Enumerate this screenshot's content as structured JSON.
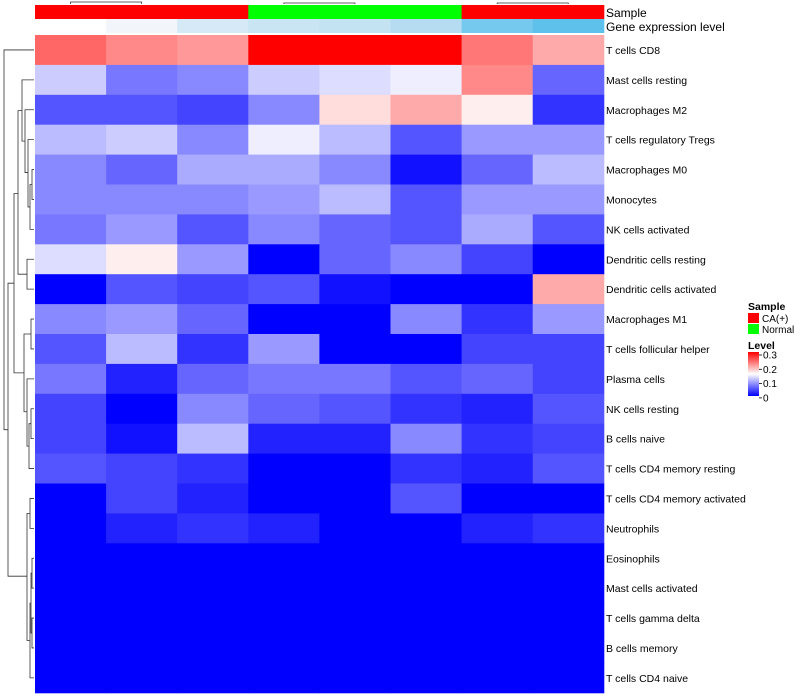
{
  "chart_data": {
    "type": "heatmap",
    "annotation_labels": {
      "sample": "Sample",
      "gene": "Gene expression level"
    },
    "columns": [
      {
        "sample": "CA(+)",
        "gene_color": "#ffffff"
      },
      {
        "sample": "CA(+)",
        "gene_color": "#f2f6fb"
      },
      {
        "sample": "CA(+)",
        "gene_color": "#d5eaf6"
      },
      {
        "sample": "Normal",
        "gene_color": "#c9e4f3"
      },
      {
        "sample": "Normal",
        "gene_color": "#c3e2f2"
      },
      {
        "sample": "Normal",
        "gene_color": "#b5dcf1"
      },
      {
        "sample": "CA(+)",
        "gene_color": "#75c8ee"
      },
      {
        "sample": "CA(+)",
        "gene_color": "#5ec1eb"
      }
    ],
    "rows": [
      "T cells CD8",
      "Mast cells resting",
      "Macrophages M2",
      "T cells regulatory  Tregs",
      "Macrophages M0",
      "Monocytes",
      "NK cells activated",
      "Dendritic cells resting",
      "Dendritic cells activated",
      "Macrophages M1",
      "T cells follicular helper",
      "Plasma cells",
      "NK cells resting",
      "B cells naive",
      "T cells CD4 memory resting",
      "T cells CD4 memory activated",
      "Neutrophils",
      "Eosinophils",
      "Mast cells activated",
      "T cells gamma delta",
      "B cells memory",
      "T cells CD4 naive"
    ],
    "values": [
      [
        0.24,
        0.22,
        0.21,
        0.3,
        0.3,
        0.3,
        0.23,
        0.2
      ],
      [
        0.12,
        0.07,
        0.08,
        0.12,
        0.13,
        0.14,
        0.22,
        0.06
      ],
      [
        0.05,
        0.05,
        0.04,
        0.08,
        0.17,
        0.2,
        0.16,
        0.03
      ],
      [
        0.11,
        0.12,
        0.08,
        0.14,
        0.11,
        0.05,
        0.09,
        0.09
      ],
      [
        0.08,
        0.06,
        0.1,
        0.1,
        0.08,
        0.01,
        0.06,
        0.11
      ],
      [
        0.08,
        0.08,
        0.08,
        0.09,
        0.11,
        0.05,
        0.09,
        0.09
      ],
      [
        0.07,
        0.09,
        0.05,
        0.08,
        0.06,
        0.05,
        0.1,
        0.05
      ],
      [
        0.13,
        0.16,
        0.09,
        0.0,
        0.06,
        0.08,
        0.04,
        0.0
      ],
      [
        0.0,
        0.05,
        0.04,
        0.05,
        0.01,
        0.0,
        0.0,
        0.2
      ],
      [
        0.08,
        0.09,
        0.06,
        0.0,
        0.0,
        0.08,
        0.03,
        0.09
      ],
      [
        0.05,
        0.11,
        0.03,
        0.09,
        0.0,
        0.0,
        0.04,
        0.04
      ],
      [
        0.07,
        0.02,
        0.06,
        0.07,
        0.07,
        0.05,
        0.06,
        0.04
      ],
      [
        0.04,
        0.0,
        0.08,
        0.06,
        0.05,
        0.03,
        0.02,
        0.05
      ],
      [
        0.04,
        0.01,
        0.11,
        0.02,
        0.02,
        0.08,
        0.03,
        0.04
      ],
      [
        0.05,
        0.04,
        0.03,
        0.0,
        0.0,
        0.03,
        0.02,
        0.05
      ],
      [
        0.0,
        0.04,
        0.02,
        0.0,
        0.0,
        0.05,
        0.0,
        0.0
      ],
      [
        0.0,
        0.02,
        0.03,
        0.02,
        0.0,
        0.0,
        0.02,
        0.03
      ],
      [
        0.0,
        0.0,
        0.0,
        0.0,
        0.0,
        0.0,
        0.0,
        0.0
      ],
      [
        0.0,
        0.0,
        0.0,
        0.0,
        0.0,
        0.0,
        0.0,
        0.0
      ],
      [
        0.0,
        0.0,
        0.0,
        0.0,
        0.0,
        0.0,
        0.0,
        0.0
      ],
      [
        0.0,
        0.0,
        0.0,
        0.0,
        0.0,
        0.0,
        0.0,
        0.0
      ],
      [
        0.0,
        0.0,
        0.0,
        0.0,
        0.0,
        0.0,
        0.0,
        0.0
      ]
    ],
    "color_range": [
      0,
      0.3
    ],
    "color_stops": [
      "#0000ff",
      "#ffffff",
      "#ff0000"
    ],
    "legend_sample": {
      "title": "Sample",
      "items": [
        {
          "label": "CA(+)",
          "color": "#ff0000"
        },
        {
          "label": "Normal",
          "color": "#00ff00"
        }
      ]
    },
    "legend_level": {
      "title": "Level",
      "ticks": [
        "0.3",
        "0.2",
        "0.1",
        "0"
      ]
    }
  }
}
